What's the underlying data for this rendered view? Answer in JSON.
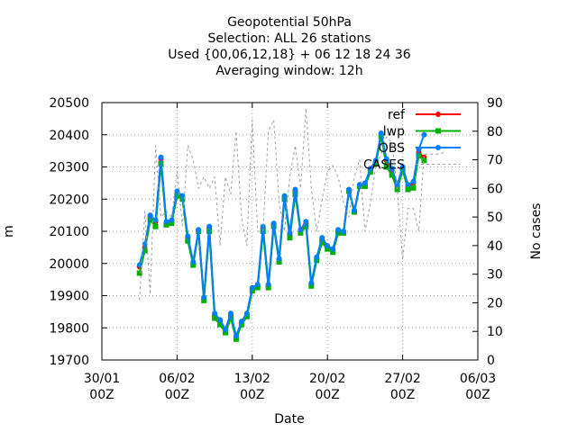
{
  "chart_data": {
    "type": "line",
    "title_lines": [
      "Geopotential 50hPa",
      "Selection: ALL      26 stations",
      "Used {00,06,12,18} + 06 12 18 24 36",
      "Averaging window: 12h"
    ],
    "xlabel": "Date",
    "ylabel": "m",
    "y2label": "No cases",
    "x_ticks": [
      {
        "t": 0,
        "label": "30/01\n00Z"
      },
      {
        "t": 7,
        "label": "06/02\n00Z"
      },
      {
        "t": 14,
        "label": "13/02\n00Z"
      },
      {
        "t": 21,
        "label": "20/02\n00Z"
      },
      {
        "t": 28,
        "label": "27/02\n00Z"
      },
      {
        "t": 35,
        "label": "06/03\n00Z"
      }
    ],
    "xlim": [
      0,
      35
    ],
    "ylim": [
      19700,
      20500
    ],
    "y_ticks": [
      19700,
      19800,
      19900,
      20000,
      20100,
      20200,
      20300,
      20400,
      20500
    ],
    "y2lim": [
      0,
      90
    ],
    "y2_ticks": [
      0,
      10,
      20,
      30,
      40,
      50,
      60,
      70,
      80,
      90
    ],
    "grid": true,
    "legend_position": "top-right",
    "series": [
      {
        "name": "ref",
        "color": "#ff0000",
        "marker": "circle",
        "x": [
          3.5,
          4.0,
          4.5,
          5.0,
          5.5,
          6.0,
          6.5,
          7.0,
          7.5,
          8.0,
          8.5,
          9.0,
          9.5,
          10.0,
          10.5,
          11.0,
          11.5,
          12.0,
          12.5,
          13.0,
          13.5,
          14.0,
          14.5,
          15.0,
          15.5,
          16.0,
          16.5,
          17.0,
          17.5,
          18.0,
          18.5,
          19.0,
          19.5,
          20.0,
          20.5,
          21.0,
          21.5,
          22.0,
          22.5,
          23.0,
          23.5,
          24.0,
          24.5,
          25.0,
          25.5,
          26.0,
          26.5,
          27.0,
          27.5,
          28.0,
          28.5,
          29.0,
          29.5,
          30.0
        ],
        "y": [
          19990,
          20050,
          20145,
          20130,
          20325,
          20125,
          20130,
          20220,
          20205,
          20080,
          20000,
          20100,
          19890,
          20110,
          19840,
          19820,
          19790,
          19840,
          19770,
          19815,
          19840,
          19920,
          19930,
          20110,
          19930,
          20120,
          20010,
          20205,
          20090,
          20225,
          20100,
          20125,
          19935,
          20015,
          20075,
          20050,
          20040,
          20100,
          20095,
          20225,
          20160,
          20240,
          20245,
          20290,
          20315,
          20400,
          20320,
          20290,
          20240,
          20295,
          20240,
          20250,
          20345,
          20330
        ]
      },
      {
        "name": "lwp",
        "color": "#00b000",
        "marker": "square",
        "x": [
          3.5,
          4.0,
          4.5,
          5.0,
          5.5,
          6.0,
          6.5,
          7.0,
          7.5,
          8.0,
          8.5,
          9.0,
          9.5,
          10.0,
          10.5,
          11.0,
          11.5,
          12.0,
          12.5,
          13.0,
          13.5,
          14.0,
          14.5,
          15.0,
          15.5,
          16.0,
          16.5,
          17.0,
          17.5,
          18.0,
          18.5,
          19.0,
          19.5,
          20.0,
          20.5,
          21.0,
          21.5,
          22.0,
          22.5,
          23.0,
          23.5,
          24.0,
          24.5,
          25.0,
          25.5,
          26.0,
          26.5,
          27.0,
          27.5,
          28.0,
          28.5,
          29.0,
          29.5,
          30.0
        ],
        "y": [
          19970,
          20040,
          20135,
          20115,
          20310,
          20120,
          20125,
          20210,
          20200,
          20070,
          19995,
          20100,
          19885,
          20100,
          19830,
          19810,
          19785,
          19830,
          19765,
          19810,
          19835,
          19915,
          19925,
          20100,
          19925,
          20115,
          20005,
          20200,
          20080,
          20215,
          20095,
          20115,
          19930,
          20010,
          20065,
          20045,
          20035,
          20095,
          20095,
          20225,
          20160,
          20240,
          20240,
          20285,
          20310,
          20395,
          20300,
          20275,
          20230,
          20290,
          20230,
          20235,
          20335,
          20320
        ]
      },
      {
        "name": "OBS",
        "color": "#0080ff",
        "marker": "circle",
        "x": [
          3.5,
          4.0,
          4.5,
          5.0,
          5.5,
          6.0,
          6.5,
          7.0,
          7.5,
          8.0,
          8.5,
          9.0,
          9.5,
          10.0,
          10.5,
          11.0,
          11.5,
          12.0,
          12.5,
          13.0,
          13.5,
          14.0,
          14.5,
          15.0,
          15.5,
          16.0,
          16.5,
          17.0,
          17.5,
          18.0,
          18.5,
          19.0,
          19.5,
          20.0,
          20.5,
          21.0,
          21.5,
          22.0,
          22.5,
          23.0,
          23.5,
          24.0,
          24.5,
          25.0,
          25.5,
          26.0,
          26.5,
          27.0,
          27.5,
          28.0,
          28.5,
          29.0,
          29.5,
          30.0
        ],
        "y": [
          19995,
          20060,
          20150,
          20135,
          20330,
          20130,
          20135,
          20225,
          20210,
          20085,
          20005,
          20105,
          19895,
          20115,
          19845,
          19825,
          19795,
          19845,
          19775,
          19820,
          19845,
          19925,
          19935,
          20115,
          19935,
          20125,
          20015,
          20210,
          20095,
          20230,
          20105,
          20130,
          19940,
          20020,
          20080,
          20055,
          20045,
          20105,
          20100,
          20230,
          20165,
          20245,
          20250,
          20295,
          20320,
          20405,
          20325,
          20295,
          20245,
          20300,
          20245,
          20255,
          20355,
          20400
        ]
      },
      {
        "name": "CASES",
        "color": "#a0a0a0",
        "axis": "y2",
        "dashed": true,
        "x": [
          3.5,
          4.0,
          4.5,
          5.0,
          5.5,
          6.0,
          6.5,
          7.0,
          7.5,
          8.0,
          8.5,
          9.0,
          9.5,
          10.0,
          10.5,
          11.0,
          11.5,
          12.0,
          12.5,
          13.0,
          13.5,
          14.0,
          14.5,
          15.0,
          15.5,
          16.0,
          16.5,
          17.0,
          17.5,
          18.0,
          18.5,
          19.0,
          19.5,
          20.0,
          20.5,
          21.0,
          21.5,
          22.0,
          22.5,
          23.0,
          23.5,
          24.0,
          24.5,
          25.0,
          25.5,
          26.0,
          26.5,
          27.0,
          27.5,
          28.0,
          28.5,
          29.0,
          29.5,
          30.0,
          30.5,
          31.0,
          31.5,
          32.0
        ],
        "y": [
          21,
          52,
          23,
          75,
          50,
          52,
          50,
          66,
          47,
          75,
          70,
          60,
          64,
          60,
          64,
          40,
          64,
          58,
          80,
          50,
          40,
          84,
          45,
          45,
          80,
          84,
          55,
          45,
          64,
          75,
          60,
          88,
          60,
          45,
          56,
          66,
          68,
          64,
          55,
          50,
          64,
          70,
          45,
          55,
          68,
          72,
          78,
          76,
          60,
          35,
          53,
          53,
          45,
          72,
          72,
          72,
          72,
          73
        ]
      }
    ]
  }
}
